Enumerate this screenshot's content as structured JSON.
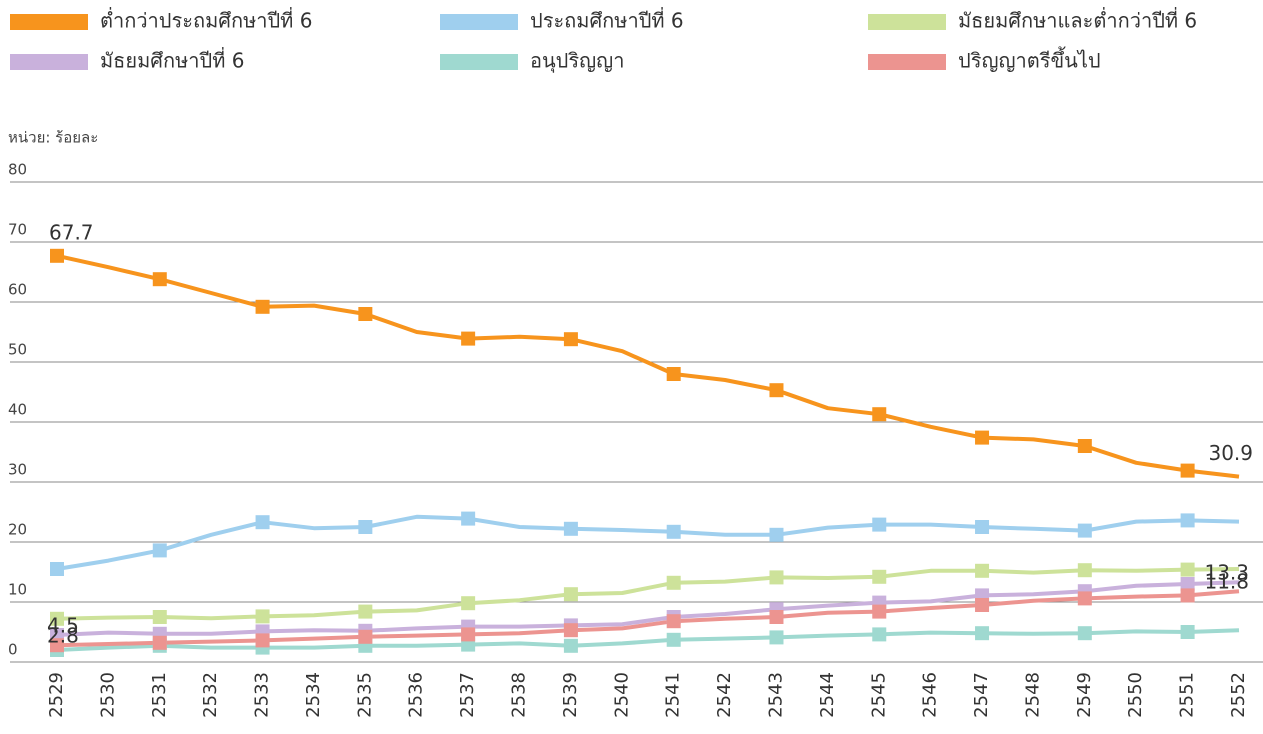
{
  "chart_data": {
    "type": "line",
    "y_label": "หน่วย: ร้อยละ",
    "categories": [
      "2529",
      "2530",
      "2531",
      "2532",
      "2533",
      "2534",
      "2535",
      "2536",
      "2537",
      "2538",
      "2539",
      "2540",
      "2541",
      "2542",
      "2543",
      "2544",
      "2545",
      "2546",
      "2547",
      "2548",
      "2549",
      "2550",
      "2551",
      "2552"
    ],
    "ylim": [
      0,
      80
    ],
    "yticks": [
      0,
      10,
      20,
      30,
      40,
      50,
      60,
      70,
      80
    ],
    "grid": true,
    "series": [
      {
        "name": "ต่ำกว่าประถมศึกษาปีที่ 6",
        "color": "#f7941d",
        "values": [
          67.7,
          65.8,
          63.8,
          61.5,
          59.2,
          59.4,
          58.0,
          55.0,
          53.9,
          54.2,
          53.8,
          51.8,
          48.0,
          47.0,
          45.3,
          42.3,
          41.3,
          39.2,
          37.4,
          37.1,
          36.0,
          33.2,
          31.9,
          30.9
        ],
        "value_labels": [
          "67.7",
          null,
          null,
          null,
          null,
          null,
          null,
          null,
          null,
          null,
          null,
          null,
          null,
          null,
          null,
          null,
          null,
          null,
          null,
          null,
          null,
          null,
          null,
          "30.9"
        ]
      },
      {
        "name": "ประถมศึกษาปีที่ 6",
        "color": "#9fcfee",
        "values": [
          15.5,
          16.9,
          18.6,
          21.2,
          23.3,
          22.3,
          22.5,
          24.2,
          23.9,
          22.5,
          22.2,
          22.0,
          21.7,
          21.2,
          21.2,
          22.4,
          22.9,
          22.9,
          22.5,
          22.2,
          21.9,
          23.4,
          23.6,
          23.4
        ]
      },
      {
        "name": "มัธยมศึกษาและต่ำกว่าปีที่ 6",
        "color": "#cde29a",
        "values": [
          7.2,
          7.4,
          7.5,
          7.3,
          7.6,
          7.8,
          8.4,
          8.6,
          9.8,
          10.3,
          11.3,
          11.5,
          13.2,
          13.4,
          14.1,
          14.0,
          14.2,
          15.2,
          15.2,
          14.9,
          15.3,
          15.2,
          15.4,
          15.5
        ]
      },
      {
        "name": "มัธยมศึกษาปีที่ 6",
        "color": "#c9b1dc",
        "values": [
          4.5,
          4.9,
          4.7,
          4.7,
          5.1,
          5.3,
          5.2,
          5.6,
          5.9,
          5.9,
          6.1,
          6.3,
          7.5,
          8.0,
          8.8,
          9.4,
          9.9,
          10.1,
          11.1,
          11.3,
          11.8,
          12.7,
          13.0,
          13.3
        ],
        "value_labels": [
          "4.5",
          null,
          null,
          null,
          null,
          null,
          null,
          null,
          null,
          null,
          null,
          null,
          null,
          null,
          null,
          null,
          null,
          null,
          null,
          null,
          null,
          null,
          null,
          "13.3"
        ]
      },
      {
        "name": "อนุปริญญา",
        "color": "#9fd9d0",
        "values": [
          2.0,
          2.4,
          2.7,
          2.4,
          2.4,
          2.4,
          2.7,
          2.7,
          2.9,
          3.1,
          2.7,
          3.1,
          3.7,
          3.9,
          4.1,
          4.4,
          4.6,
          4.9,
          4.8,
          4.7,
          4.8,
          5.1,
          5.0,
          5.3
        ]
      },
      {
        "name": "ปริญญาตรีขึ้นไป",
        "color": "#ec9490",
        "values": [
          2.8,
          3.0,
          3.2,
          3.4,
          3.6,
          3.9,
          4.2,
          4.4,
          4.6,
          4.8,
          5.3,
          5.6,
          6.8,
          7.2,
          7.5,
          8.2,
          8.4,
          9.0,
          9.5,
          10.2,
          10.6,
          10.9,
          11.1,
          11.8
        ],
        "value_labels": [
          "2.8",
          null,
          null,
          null,
          null,
          null,
          null,
          null,
          null,
          null,
          null,
          null,
          null,
          null,
          null,
          null,
          null,
          null,
          null,
          null,
          null,
          null,
          null,
          "11.8"
        ]
      }
    ]
  }
}
